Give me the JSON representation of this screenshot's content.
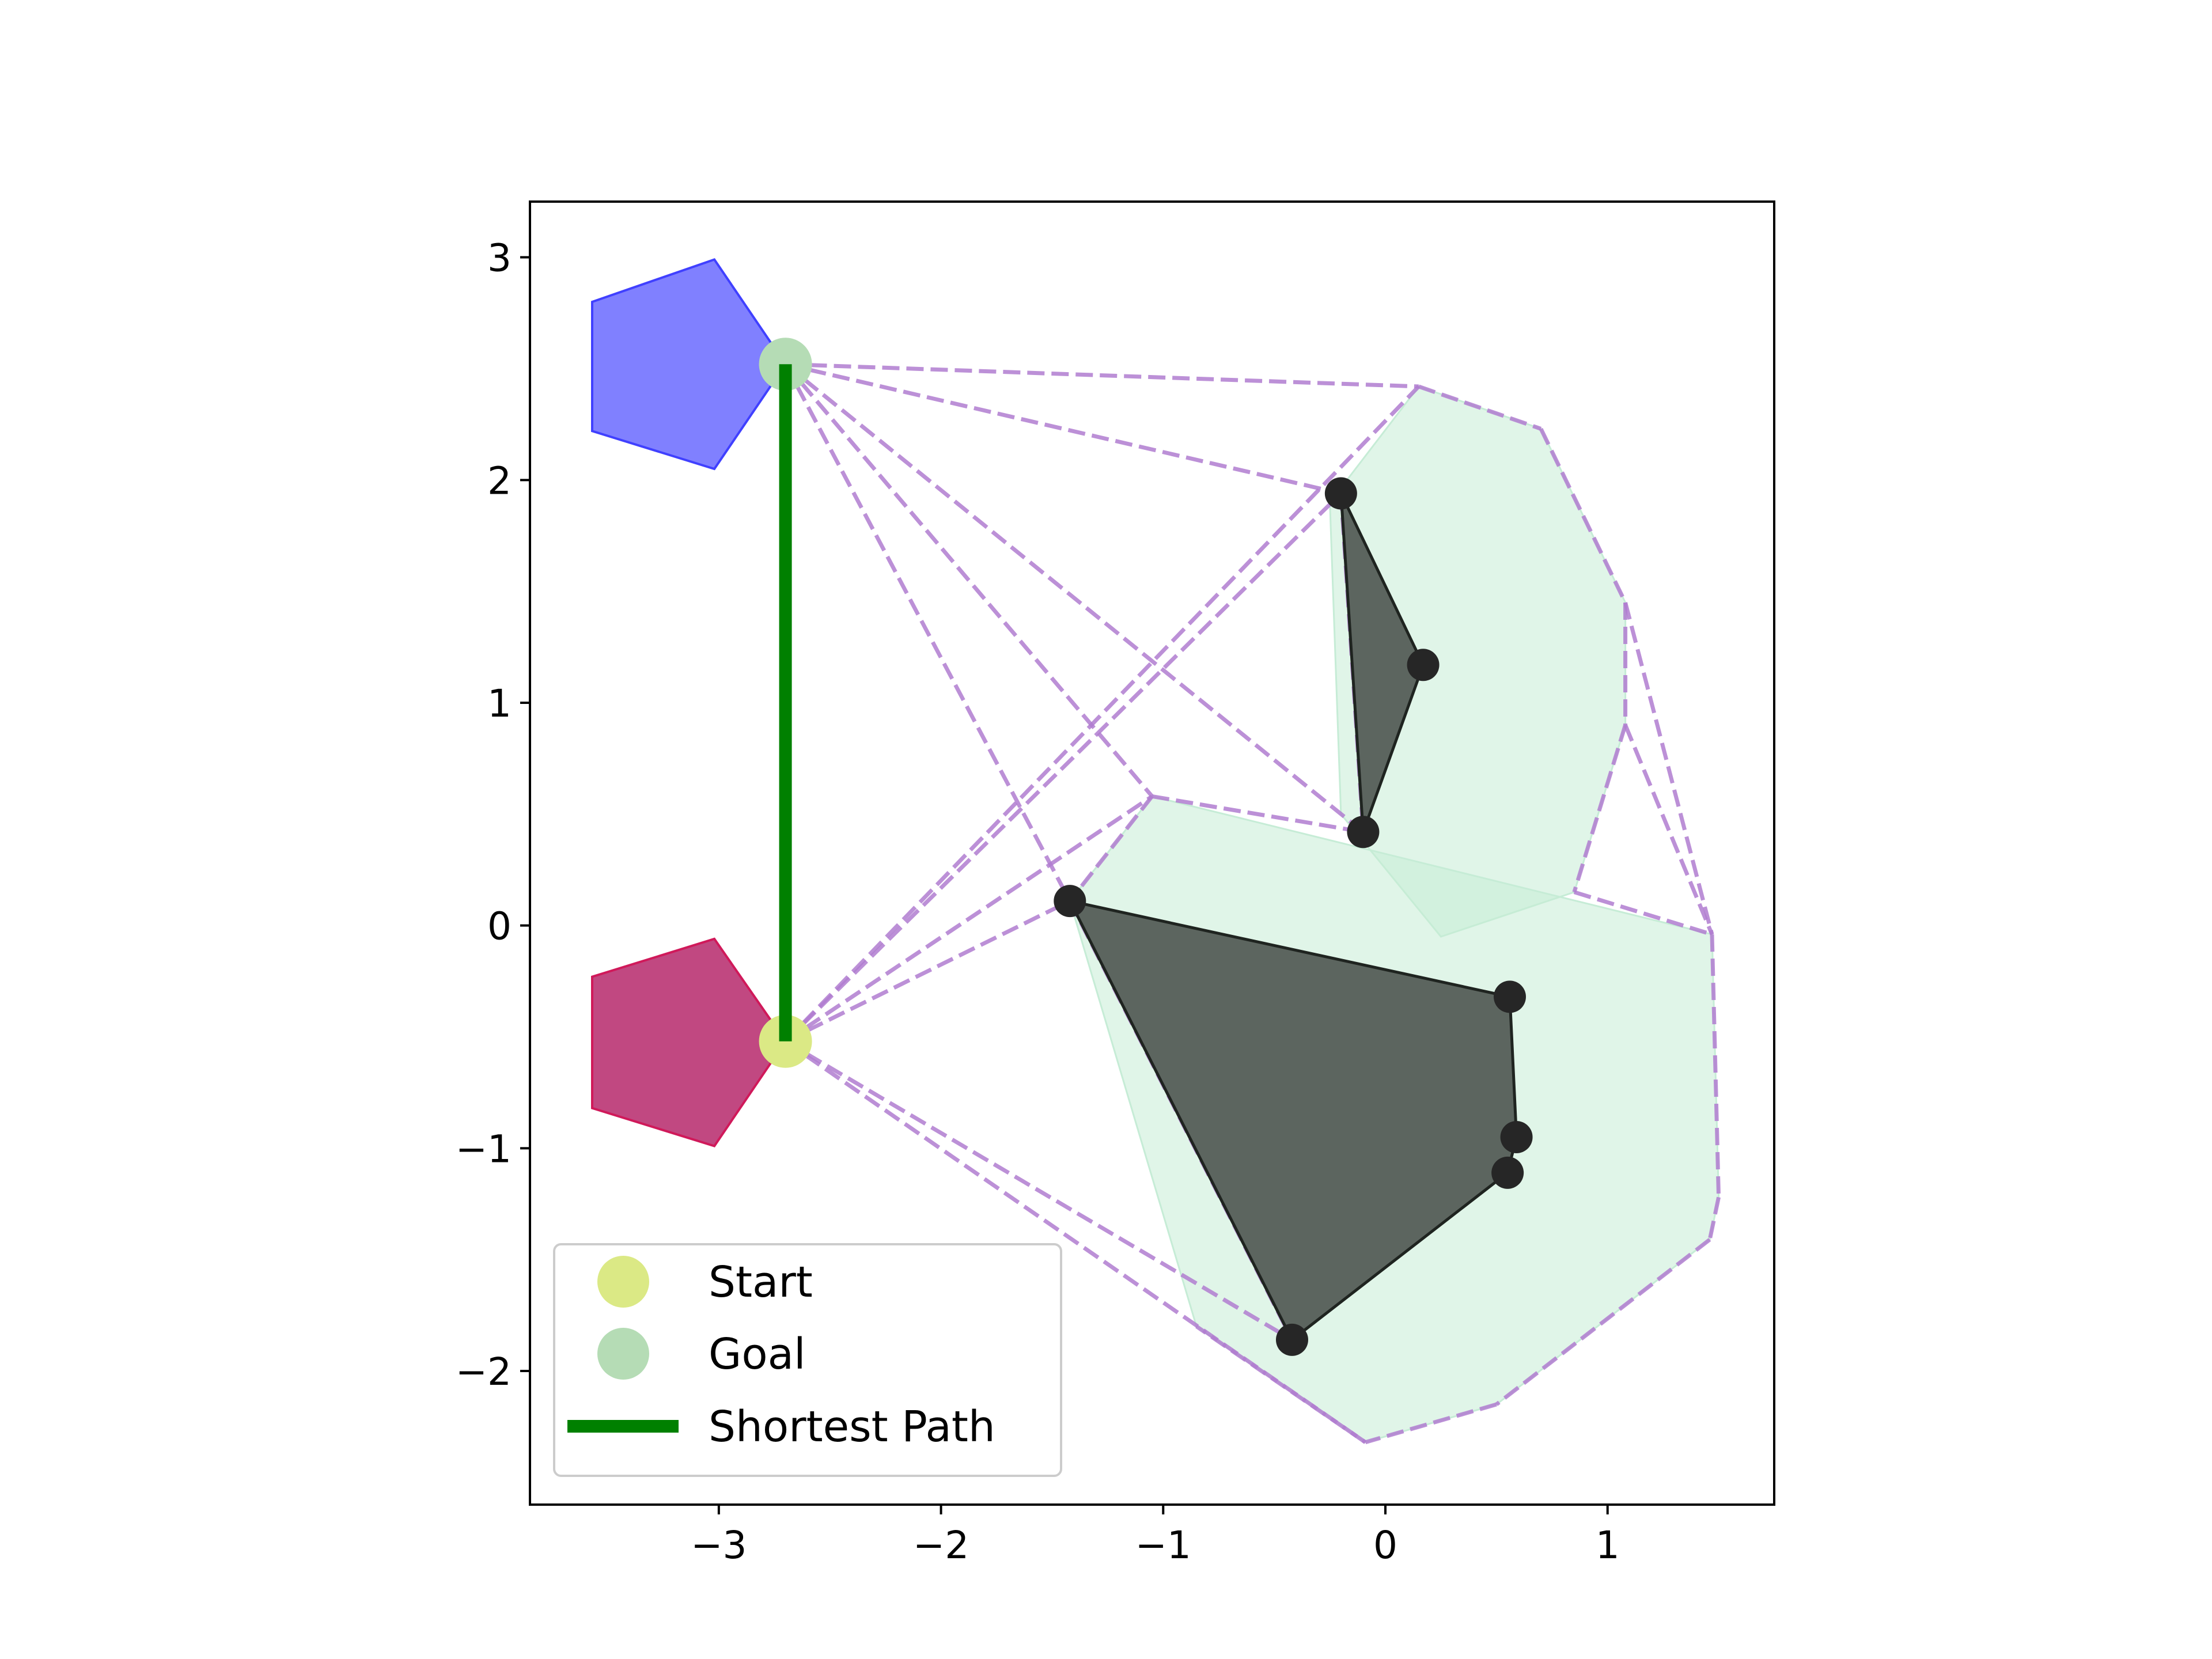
{
  "chart_data": {
    "type": "scatter",
    "title": "",
    "xlabel": "",
    "ylabel": "",
    "xlim": [
      -3.85,
      1.75
    ],
    "ylim": [
      -2.6,
      3.25
    ],
    "x_ticks": [
      -3,
      -2,
      -1,
      0,
      1
    ],
    "y_ticks": [
      -2,
      -1,
      0,
      1,
      2,
      3
    ],
    "x_tick_labels": [
      "−3",
      "−2",
      "−1",
      "0",
      "1"
    ],
    "y_tick_labels": [
      "−2",
      "−1",
      "0",
      "1",
      "2",
      "3"
    ],
    "grid": false,
    "legend_placement": "lower-left",
    "colors": {
      "start": "#dbe985",
      "goal": "#b5dcb5",
      "shortest_path": "#008000",
      "visibility_edge": "#b07cd0",
      "inflated_region": "#c6ecd6",
      "obstacle": "#58605a",
      "vertex": "#262626",
      "start_pentagon": "#be3e7a",
      "goal_pentagon": "#8080ff"
    },
    "start": [
      -2.7,
      -0.52
    ],
    "goal": [
      -2.7,
      2.52
    ],
    "shortest_path": [
      [
        -2.7,
        -0.52
      ],
      [
        -2.7,
        2.52
      ]
    ],
    "start_pentagon": [
      [
        -3.02,
        -0.06
      ],
      [
        -2.7,
        -0.52
      ],
      [
        -3.02,
        -0.99
      ],
      [
        -3.57,
        -0.82
      ],
      [
        -3.57,
        -0.23
      ]
    ],
    "goal_pentagon": [
      [
        -3.02,
        2.99
      ],
      [
        -2.7,
        2.52
      ],
      [
        -3.02,
        2.05
      ],
      [
        -3.57,
        2.22
      ],
      [
        -3.57,
        2.8
      ]
    ],
    "inflated_regions": [
      [
        [
          0.15,
          2.42
        ],
        [
          0.7,
          2.23
        ],
        [
          1.08,
          1.45
        ],
        [
          1.08,
          0.9
        ],
        [
          0.85,
          0.15
        ],
        [
          0.25,
          -0.05
        ],
        [
          -0.2,
          0.5
        ],
        [
          -0.25,
          1.9
        ]
      ],
      [
        [
          -1.05,
          0.58
        ],
        [
          1.47,
          -0.04
        ],
        [
          1.5,
          -1.22
        ],
        [
          1.46,
          -1.41
        ],
        [
          0.5,
          -2.15
        ],
        [
          -0.09,
          -2.32
        ],
        [
          -0.85,
          -1.8
        ],
        [
          -1.42,
          0.11
        ]
      ]
    ],
    "obstacles": [
      [
        [
          -0.2,
          1.94
        ],
        [
          0.17,
          1.17
        ],
        [
          -0.1,
          0.42
        ]
      ],
      [
        [
          -1.42,
          0.11
        ],
        [
          0.56,
          -0.32
        ],
        [
          0.59,
          -0.95
        ],
        [
          0.55,
          -1.11
        ],
        [
          -0.42,
          -1.86
        ]
      ]
    ],
    "obstacle_vertices": [
      [
        -0.2,
        1.94
      ],
      [
        0.17,
        1.17
      ],
      [
        -0.1,
        0.42
      ],
      [
        -1.42,
        0.11
      ],
      [
        0.56,
        -0.32
      ],
      [
        0.59,
        -0.95
      ],
      [
        0.55,
        -1.11
      ],
      [
        -0.42,
        -1.86
      ]
    ],
    "visibility_edges": [
      [
        [
          -2.7,
          2.52
        ],
        [
          0.15,
          2.42
        ]
      ],
      [
        [
          -2.7,
          2.52
        ],
        [
          -0.2,
          1.94
        ]
      ],
      [
        [
          -2.7,
          2.52
        ],
        [
          -0.1,
          0.42
        ]
      ],
      [
        [
          -2.7,
          2.52
        ],
        [
          -1.42,
          0.11
        ]
      ],
      [
        [
          -2.7,
          2.52
        ],
        [
          -1.05,
          0.58
        ]
      ],
      [
        [
          -2.7,
          -0.52
        ],
        [
          -0.2,
          1.94
        ]
      ],
      [
        [
          -2.7,
          -0.52
        ],
        [
          0.15,
          2.42
        ]
      ],
      [
        [
          -2.7,
          -0.52
        ],
        [
          -1.42,
          0.11
        ]
      ],
      [
        [
          -2.7,
          -0.52
        ],
        [
          -1.05,
          0.58
        ]
      ],
      [
        [
          -2.7,
          -0.52
        ],
        [
          -0.42,
          -1.86
        ]
      ],
      [
        [
          -2.7,
          -0.52
        ],
        [
          -0.09,
          -2.32
        ]
      ],
      [
        [
          -1.05,
          0.58
        ],
        [
          -0.1,
          0.42
        ]
      ],
      [
        [
          -0.2,
          1.94
        ],
        [
          -0.1,
          0.42
        ]
      ],
      [
        [
          -1.42,
          0.11
        ],
        [
          -0.42,
          -1.86
        ]
      ],
      [
        [
          0.15,
          2.42
        ],
        [
          0.7,
          2.23
        ]
      ],
      [
        [
          0.7,
          2.23
        ],
        [
          1.08,
          1.45
        ]
      ],
      [
        [
          1.08,
          1.45
        ],
        [
          1.47,
          -0.04
        ]
      ],
      [
        [
          1.08,
          0.9
        ],
        [
          1.47,
          -0.04
        ]
      ],
      [
        [
          1.08,
          1.45
        ],
        [
          1.08,
          0.9
        ]
      ],
      [
        [
          1.08,
          0.9
        ],
        [
          0.85,
          0.15
        ]
      ],
      [
        [
          0.85,
          0.15
        ],
        [
          1.47,
          -0.04
        ]
      ],
      [
        [
          1.47,
          -0.04
        ],
        [
          1.5,
          -1.22
        ]
      ],
      [
        [
          1.5,
          -1.22
        ],
        [
          1.46,
          -1.41
        ]
      ],
      [
        [
          1.46,
          -1.41
        ],
        [
          0.5,
          -2.15
        ]
      ],
      [
        [
          0.5,
          -2.15
        ],
        [
          -0.09,
          -2.32
        ]
      ],
      [
        [
          -0.09,
          -2.32
        ],
        [
          -0.85,
          -1.8
        ]
      ],
      [
        [
          -1.05,
          0.58
        ],
        [
          -1.42,
          0.11
        ]
      ]
    ],
    "legend": [
      {
        "label": "Start",
        "marker": "circle",
        "color": "#dbe985"
      },
      {
        "label": "Goal",
        "marker": "circle",
        "color": "#b5dcb5"
      },
      {
        "label": "Shortest Path",
        "marker": "line",
        "color": "#008000"
      }
    ]
  }
}
